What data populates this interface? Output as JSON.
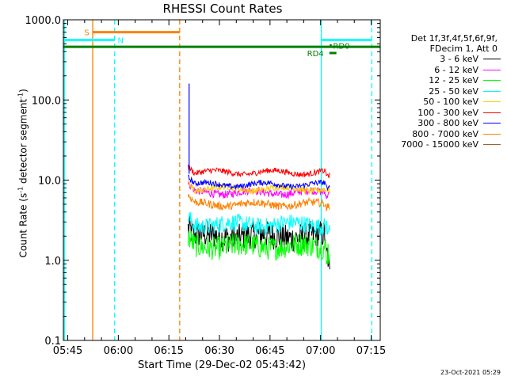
{
  "chart_data": {
    "type": "line",
    "title": "RHESSI Count Rates",
    "xlabel": "Start Time (29-Dec-02 05:43:42)",
    "ylabel_main": "Count Rate (s",
    "ylabel_sup": "-1",
    "ylabel_rest": " detector segment",
    "ylabel_sup2": "-1",
    "ylabel_end": ")",
    "xscale": "time",
    "yscale": "log",
    "xlim_minutes": [
      0,
      94
    ],
    "ylim": [
      0.1,
      1000
    ],
    "x_ticks": [
      {
        "label": "05:45",
        "minute": 1.3
      },
      {
        "label": "06:00",
        "minute": 16.3
      },
      {
        "label": "06:15",
        "minute": 31.3
      },
      {
        "label": "06:30",
        "minute": 46.3
      },
      {
        "label": "06:45",
        "minute": 61.3
      },
      {
        "label": "07:00",
        "minute": 76.3
      },
      {
        "label": "07:15",
        "minute": 91.3
      }
    ],
    "y_ticks": [
      {
        "label": "0.1",
        "value": 0.1
      },
      {
        "label": "1.0",
        "value": 1
      },
      {
        "label": "10.0",
        "value": 10
      },
      {
        "label": "100.0",
        "value": 100
      },
      {
        "label": "1000.0",
        "value": 1000
      }
    ],
    "data_window_minutes": [
      37.0,
      79.0
    ],
    "series": [
      {
        "name": "3 - 6 keV",
        "color": "#000000",
        "level": 2.0,
        "jitter": 0.35,
        "end_drop": 1.1
      },
      {
        "name": "6 - 12 keV",
        "color": "#ff00ff",
        "level": 7.0,
        "jitter": 0.1,
        "end_drop": 6.5
      },
      {
        "name": "12 - 25 keV",
        "color": "#00ff00",
        "level": 1.5,
        "jitter": 0.3,
        "end_drop": 1.2
      },
      {
        "name": "25 - 50 keV",
        "color": "#00ffff",
        "level": 2.8,
        "jitter": 0.22,
        "end_drop": 2.6
      },
      {
        "name": "50 - 100 keV",
        "color": "#ffcc00",
        "level": 7.8,
        "jitter": 0.08,
        "end_drop": 7.5
      },
      {
        "name": "100 - 300 keV",
        "color": "#ff0000",
        "level": 12.5,
        "jitter": 0.07,
        "end_drop": 11.5
      },
      {
        "name": "300 - 800 keV",
        "color": "#0000ff",
        "level": 8.8,
        "jitter": 0.07,
        "end_drop": 8.2
      },
      {
        "name": "800 - 7000 keV",
        "color": "#ff8000",
        "level": 5.0,
        "jitter": 0.1,
        "end_drop": 4.6
      },
      {
        "name": "7000 - 15000 keV",
        "color": "#996633",
        "level": 0,
        "jitter": 0,
        "end_drop": 0
      }
    ],
    "spike": {
      "minute": 37.3,
      "value": 160,
      "color": "#0000ff"
    },
    "annotations": [
      {
        "label": "S",
        "color": "#ff8000",
        "bar_from_minute": 8.7,
        "bar_to_minute": 34.5,
        "bar_value": 700,
        "label_minute": 6.2
      },
      {
        "label": "N",
        "color": "#00ffff",
        "bar_from_minute": 0.4,
        "bar_to_minute": 15.2,
        "bar_value": 560,
        "label_minute": 16.1
      },
      {
        "label": "RD0",
        "color": "#008000",
        "bar_from_minute": 79.0,
        "bar_to_minute": 79.6,
        "bar_value": 480,
        "label_minute": 80.0
      },
      {
        "label": "RD4",
        "color": "#008000",
        "bar_from_minute": 78.9,
        "bar_to_minute": 81.0,
        "bar_value": 385,
        "label_minute": 72.3
      }
    ],
    "attenuator_bar": {
      "color": "#008000",
      "from_minute": 0,
      "to_minute": 94,
      "value": 460
    },
    "n_bar_right": {
      "color": "#00ffff",
      "from_minute": 76.5,
      "to_minute": 91.5,
      "value": 560
    },
    "vertical_lines": [
      {
        "minute": 0.3,
        "color": "#00ffff",
        "dashed": false
      },
      {
        "minute": 8.7,
        "color": "#ff8000",
        "dashed": false
      },
      {
        "minute": 15.2,
        "color": "#00ffff",
        "dashed": true
      },
      {
        "minute": 34.5,
        "color": "#ff8000",
        "dashed": true
      },
      {
        "minute": 76.5,
        "color": "#00ffff",
        "dashed": false
      },
      {
        "minute": 91.5,
        "color": "#00ffff",
        "dashed": true
      }
    ]
  },
  "legend": {
    "header_line1": "Det 1f,3f,4f,5f,6f,9f,",
    "header_line2": "FDecim 1, Att 0"
  },
  "footer": "23-Oct-2021 05:29"
}
